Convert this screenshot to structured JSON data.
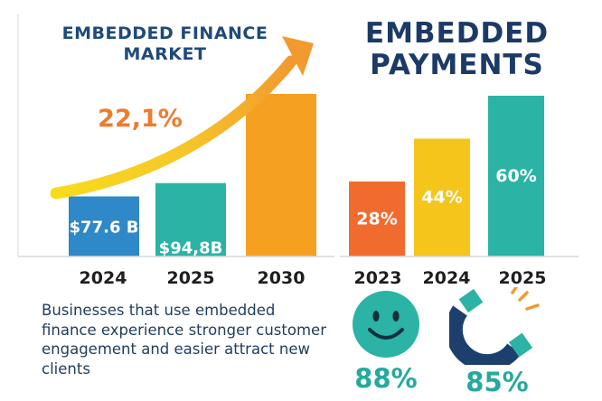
{
  "chart_data": [
    {
      "type": "bar",
      "title": "EMBEDDED FINANCE MARKET",
      "categories": [
        "2024",
        "2025",
        "2030"
      ],
      "values": [
        77.6,
        94.8,
        210
      ],
      "data_labels": [
        "$77.6 B",
        "$94,8B",
        ""
      ],
      "annotation": "22,1%",
      "trend_arrow": true,
      "colors": [
        "#2f88c8",
        "#2bb3a5",
        "#f5a020"
      ]
    },
    {
      "type": "bar",
      "title": "EMBEDDED PAYMENTS",
      "categories": [
        "2023",
        "2024",
        "2025"
      ],
      "values": [
        28,
        44,
        60
      ],
      "data_labels": [
        "28%",
        "44%",
        "60%"
      ],
      "unit": "%",
      "colors": [
        "#f26b2e",
        "#f5c51c",
        "#2bb3a5"
      ]
    }
  ],
  "blurb": "Businesses that use embedded finance experience stronger customer engagement and easier attract new clients",
  "stats": [
    {
      "icon": "smiley-face-icon",
      "value": "88%"
    },
    {
      "icon": "magnet-icon",
      "value": "85%"
    }
  ],
  "colors": {
    "title_navy": "#1b3a66",
    "teal": "#26a99d",
    "orange": "#ee7c2f",
    "trend_yellow": "#f6d019",
    "trend_orange": "#f29a2e"
  }
}
